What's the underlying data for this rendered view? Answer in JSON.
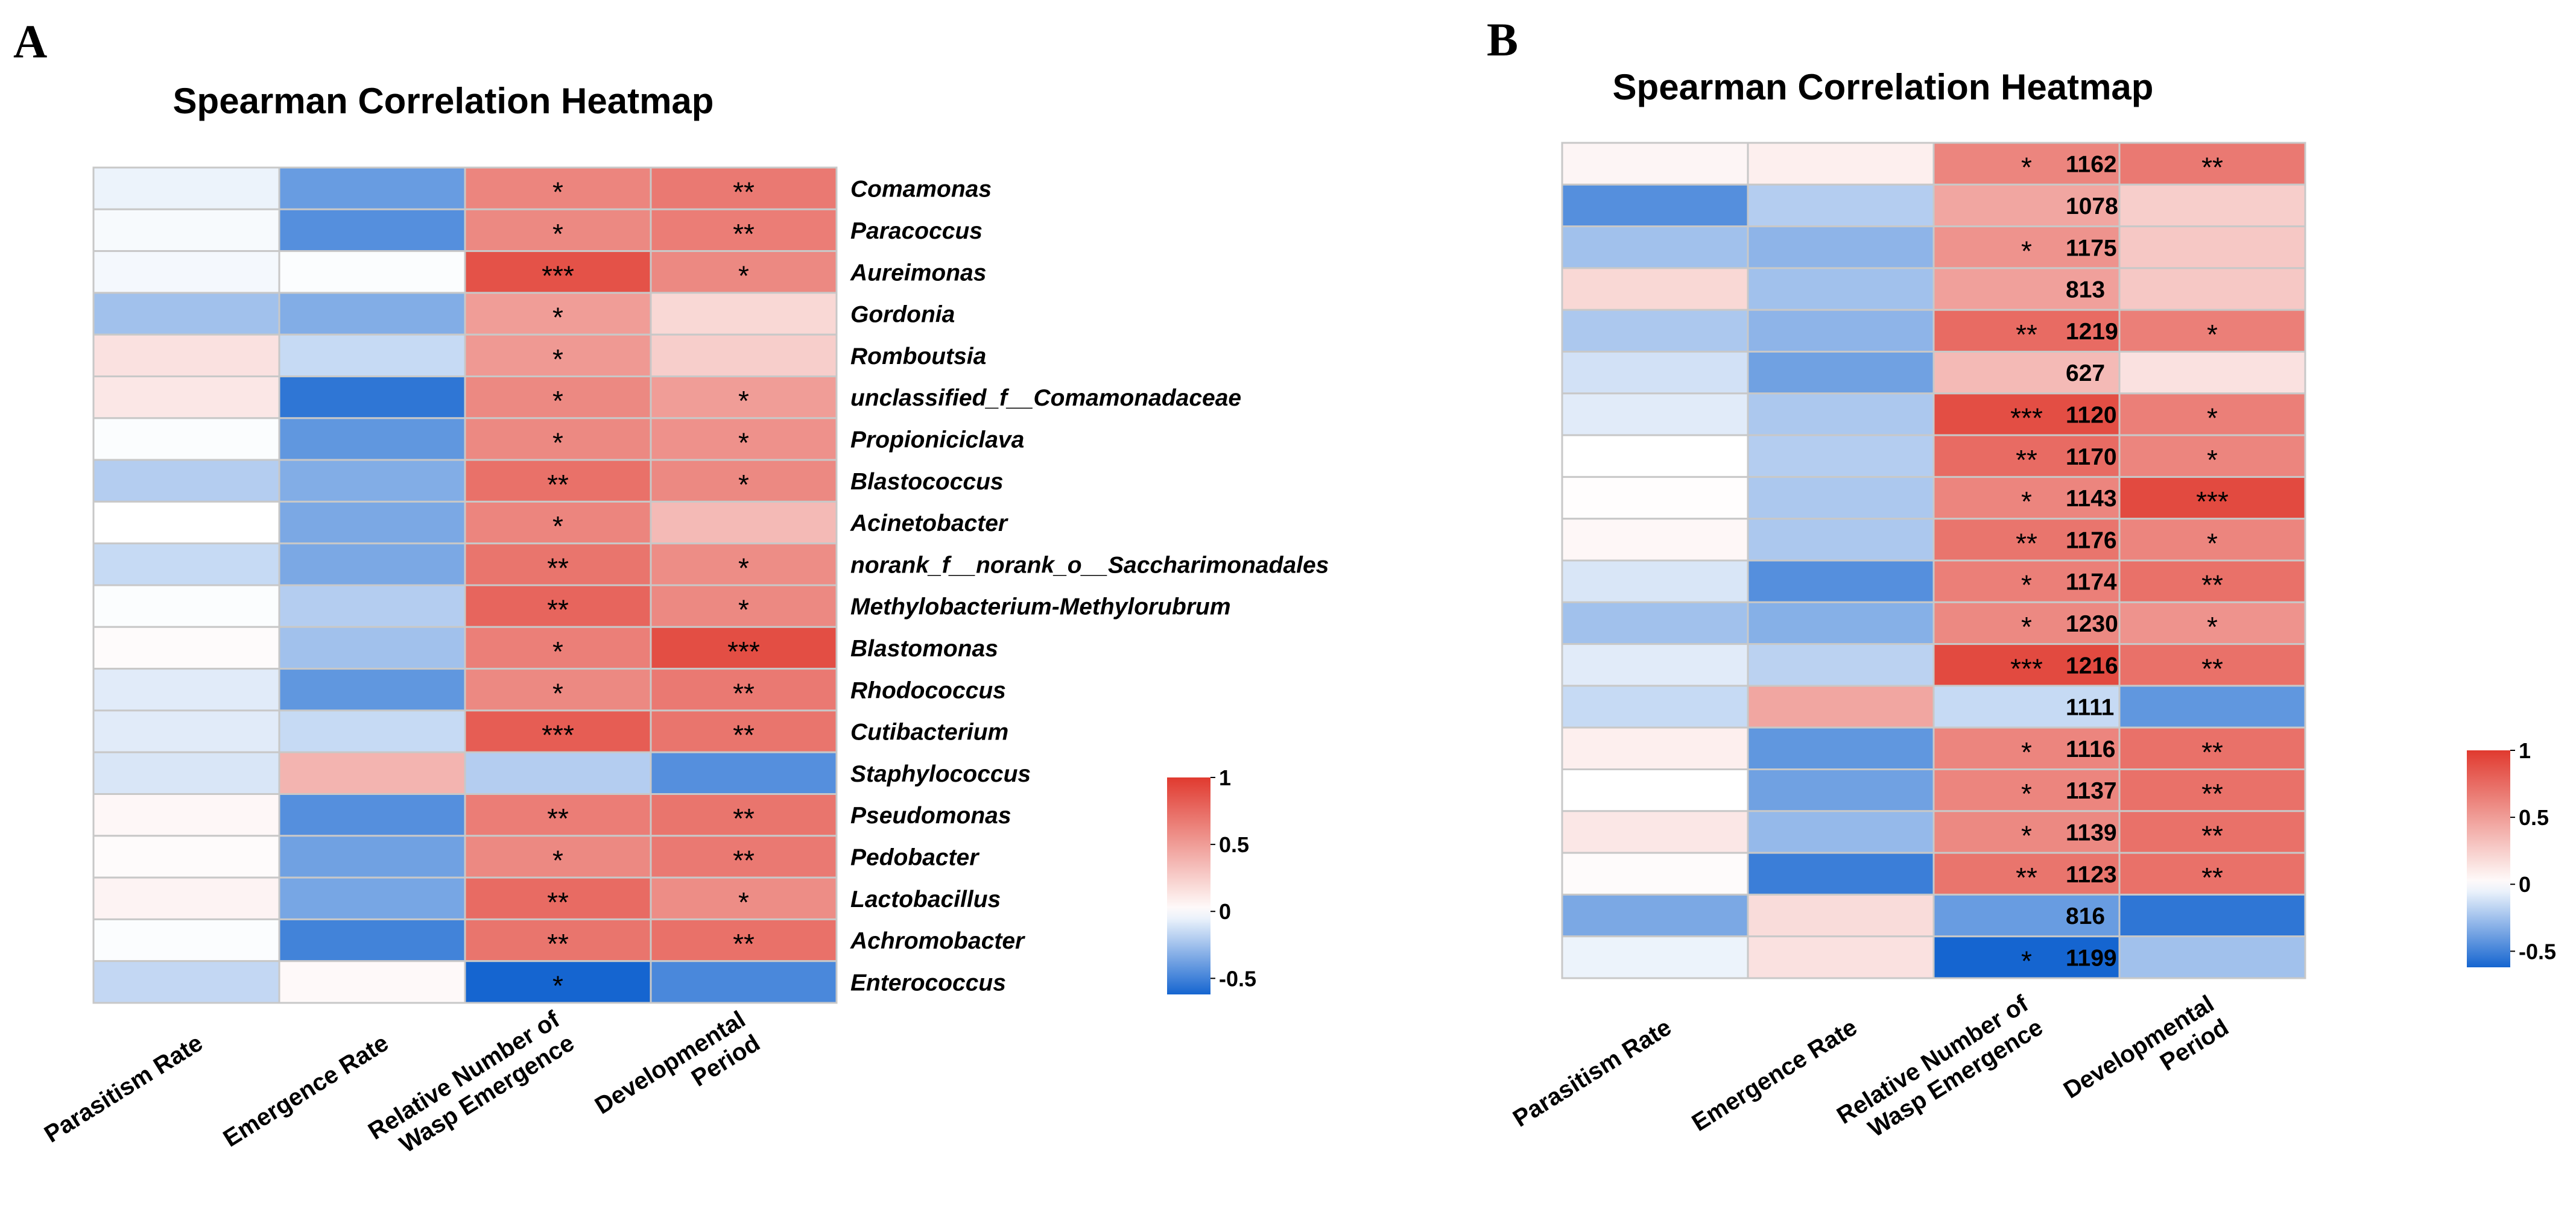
{
  "colors": {
    "low": "#1565d0",
    "mid": "#ffffff",
    "high": "#e03a2f",
    "grid": "#c8c8c8"
  },
  "chart_data": [
    {
      "type": "heatmap",
      "panel": "A",
      "title": "Spearman Correlation Heatmap",
      "columns": [
        "Parasitism Rate",
        "Emergence Rate",
        "Relative Number of Wasp Emergence",
        "Developmental Period"
      ],
      "column_label_lines": [
        [
          "Parasitism Rate"
        ],
        [
          "Emergence Rate"
        ],
        [
          "Relative Number of",
          "Wasp Emergence"
        ],
        [
          "Developmental",
          "Period"
        ]
      ],
      "rows": [
        "Comamonas",
        "Paracoccus",
        "Aureimonas",
        "Gordonia",
        "Romboutsia",
        "unclassified_f__Comamonadaceae",
        "Propioniciclava",
        "Blastococcus",
        "Acinetobacter",
        "norank_f__norank_o__Saccharimonadales",
        "Methylobacterium-Methylorubrum",
        "Blastomonas",
        "Rhodococcus",
        "Cutibacterium",
        "Staphylococcus",
        "Pseudomonas",
        "Pedobacter",
        "Lactobacillus",
        "Achromobacter",
        "Enterococcus"
      ],
      "values": [
        [
          -0.05,
          -0.4,
          0.62,
          0.68
        ],
        [
          -0.02,
          -0.45,
          0.6,
          0.66
        ],
        [
          -0.03,
          -0.01,
          0.88,
          0.6
        ],
        [
          -0.25,
          -0.33,
          0.5,
          0.2
        ],
        [
          0.15,
          -0.15,
          0.52,
          0.25
        ],
        [
          0.12,
          -0.55,
          0.6,
          0.5
        ],
        [
          -0.01,
          -0.42,
          0.6,
          0.56
        ],
        [
          -0.2,
          -0.33,
          0.72,
          0.6
        ],
        [
          0.0,
          -0.35,
          0.62,
          0.35
        ],
        [
          -0.15,
          -0.35,
          0.7,
          0.58
        ],
        [
          -0.01,
          -0.2,
          0.78,
          0.6
        ],
        [
          0.02,
          -0.25,
          0.65,
          0.9
        ],
        [
          -0.08,
          -0.42,
          0.6,
          0.68
        ],
        [
          -0.08,
          -0.15,
          0.82,
          0.7
        ],
        [
          -0.1,
          0.38,
          -0.2,
          -0.45
        ],
        [
          0.04,
          -0.45,
          0.66,
          0.7
        ],
        [
          0.02,
          -0.38,
          0.6,
          0.68
        ],
        [
          0.06,
          -0.36,
          0.75,
          0.58
        ],
        [
          -0.01,
          -0.5,
          0.7,
          0.72
        ],
        [
          -0.16,
          0.03,
          -0.62,
          -0.48
        ]
      ],
      "significance": [
        [
          "",
          "",
          "*",
          "**"
        ],
        [
          "",
          "",
          "*",
          "**"
        ],
        [
          "",
          "",
          "***",
          "*"
        ],
        [
          "",
          "",
          "*",
          ""
        ],
        [
          "",
          "",
          "*",
          ""
        ],
        [
          "",
          "",
          "*",
          "*"
        ],
        [
          "",
          "",
          "*",
          "*"
        ],
        [
          "",
          "",
          "**",
          "*"
        ],
        [
          "",
          "",
          "*",
          ""
        ],
        [
          "",
          "",
          "**",
          "*"
        ],
        [
          "",
          "",
          "**",
          "*"
        ],
        [
          "",
          "",
          "*",
          "***"
        ],
        [
          "",
          "",
          "*",
          "**"
        ],
        [
          "",
          "",
          "***",
          "**"
        ],
        [
          "",
          "",
          "",
          ""
        ],
        [
          "",
          "",
          "**",
          "**"
        ],
        [
          "",
          "",
          "*",
          "**"
        ],
        [
          "",
          "",
          "**",
          "*"
        ],
        [
          "",
          "",
          "**",
          "**"
        ],
        [
          "",
          "",
          "*",
          ""
        ]
      ],
      "scale": {
        "min": -0.62,
        "max": 1,
        "ticks": [
          "1",
          "0.5",
          "0",
          "-0.5"
        ],
        "tick_values": [
          1,
          0.5,
          0,
          -0.5
        ]
      }
    },
    {
      "type": "heatmap",
      "panel": "B",
      "title": "Spearman Correlation Heatmap",
      "columns": [
        "Parasitism Rate",
        "Emergence Rate",
        "Relative Number of Wasp Emergence",
        "Developmental Period"
      ],
      "column_label_lines": [
        [
          "Parasitism Rate"
        ],
        [
          "Emergence Rate"
        ],
        [
          "Relative Number of",
          "Wasp Emergence"
        ],
        [
          "Developmental",
          "Period"
        ]
      ],
      "rows": [
        "1162",
        "1078",
        "1175",
        "813",
        "1219",
        "627",
        "1120",
        "1170",
        "1143",
        "1176",
        "1174",
        "1230",
        "1216",
        "1111",
        "1116",
        "1137",
        "1139",
        "1123",
        "816",
        "1199"
      ],
      "values": [
        [
          0.05,
          0.08,
          0.62,
          0.68
        ],
        [
          -0.45,
          -0.2,
          0.45,
          0.25
        ],
        [
          -0.25,
          -0.3,
          0.55,
          0.28
        ],
        [
          0.2,
          -0.25,
          0.48,
          0.28
        ],
        [
          -0.22,
          -0.3,
          0.75,
          0.65
        ],
        [
          -0.12,
          -0.38,
          0.35,
          0.15
        ],
        [
          -0.08,
          -0.22,
          0.9,
          0.65
        ],
        [
          0.0,
          -0.2,
          0.75,
          0.62
        ],
        [
          0.01,
          -0.22,
          0.62,
          0.92
        ],
        [
          0.04,
          -0.22,
          0.7,
          0.62
        ],
        [
          -0.1,
          -0.45,
          0.65,
          0.72
        ],
        [
          -0.25,
          -0.32,
          0.6,
          0.55
        ],
        [
          -0.08,
          -0.18,
          0.92,
          0.72
        ],
        [
          -0.15,
          0.45,
          -0.15,
          -0.42
        ],
        [
          0.08,
          -0.42,
          0.62,
          0.72
        ],
        [
          0.0,
          -0.38,
          0.62,
          0.72
        ],
        [
          0.12,
          -0.28,
          0.6,
          0.72
        ],
        [
          0.02,
          -0.52,
          0.7,
          0.72
        ],
        [
          -0.35,
          0.18,
          -0.4,
          -0.55
        ],
        [
          -0.05,
          0.15,
          -0.62,
          -0.25
        ]
      ],
      "significance": [
        [
          "",
          "",
          "*",
          "**"
        ],
        [
          "",
          "",
          "",
          ""
        ],
        [
          "",
          "",
          "*",
          ""
        ],
        [
          "",
          "",
          "",
          ""
        ],
        [
          "",
          "",
          "**",
          "*"
        ],
        [
          "",
          "",
          "",
          ""
        ],
        [
          "",
          "",
          "***",
          "*"
        ],
        [
          "",
          "",
          "**",
          "*"
        ],
        [
          "",
          "",
          "*",
          "***"
        ],
        [
          "",
          "",
          "**",
          "*"
        ],
        [
          "",
          "",
          "*",
          "**"
        ],
        [
          "",
          "",
          "*",
          "*"
        ],
        [
          "",
          "",
          "***",
          "**"
        ],
        [
          "",
          "",
          "",
          ""
        ],
        [
          "",
          "",
          "*",
          "**"
        ],
        [
          "",
          "",
          "*",
          "**"
        ],
        [
          "",
          "",
          "*",
          "**"
        ],
        [
          "",
          "",
          "**",
          "**"
        ],
        [
          "",
          "",
          "",
          ""
        ],
        [
          "",
          "",
          "*",
          ""
        ]
      ],
      "scale": {
        "min": -0.62,
        "max": 1,
        "ticks": [
          "1",
          "0.5",
          "0",
          "-0.5"
        ],
        "tick_values": [
          1,
          0.5,
          0,
          -0.5
        ]
      }
    }
  ]
}
